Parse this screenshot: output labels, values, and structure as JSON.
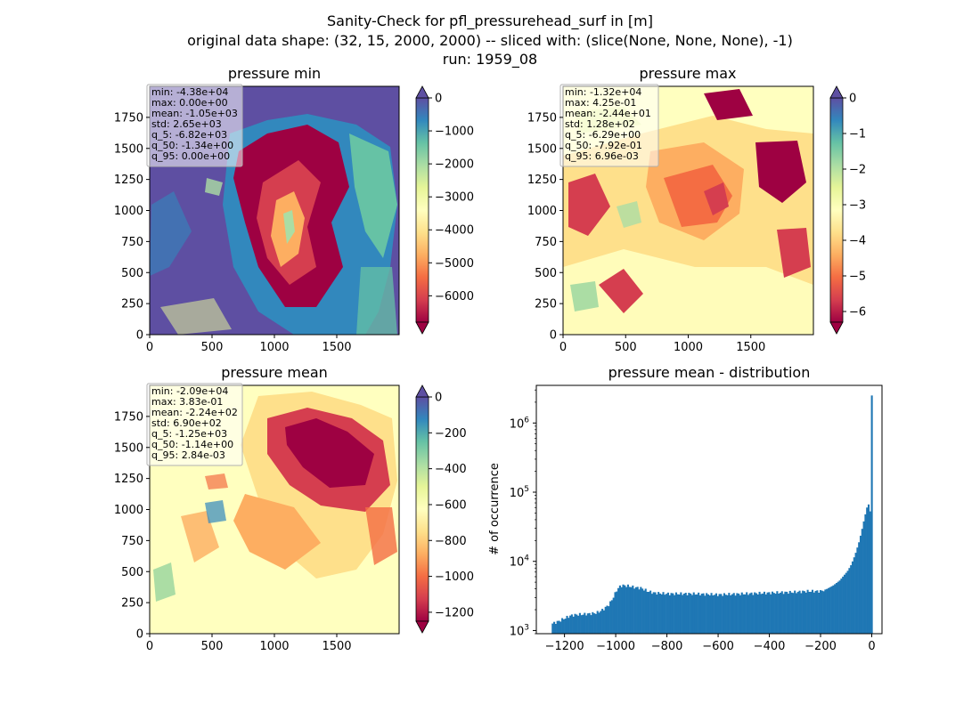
{
  "figure": {
    "title_lines": [
      "Sanity-Check for pfl_pressurehead_surf in [m]",
      "original data shape: (32, 15, 2000, 2000) -- sliced with: (slice(None, None, None), -1)",
      "run: 1959_08"
    ]
  },
  "chart_data": [
    {
      "type": "heatmap",
      "title": "pressure min",
      "xlabel": "",
      "ylabel": "",
      "xlim": [
        0,
        2000
      ],
      "ylim": [
        0,
        2000
      ],
      "xticks": [
        0,
        500,
        1000,
        1500
      ],
      "yticks": [
        0,
        250,
        500,
        750,
        1000,
        1250,
        1500,
        1750
      ],
      "colorbar": {
        "cmap": "Spectral",
        "range": [
          -6800,
          0
        ],
        "ticks": [
          0,
          -1000,
          -2000,
          -3000,
          -4000,
          -5000,
          -6000
        ],
        "extend": "both",
        "over_color": "#5e4fa2",
        "under_color": "#9e0142"
      },
      "stats": {
        "min": "-4.38e+04",
        "max": "0.00e+00",
        "mean": "-1.05e+03",
        "std": "2.65e+03",
        "q_5": "-6.82e+03",
        "q_50": "-1.34e+00",
        "q_95": "0.00e+00"
      }
    },
    {
      "type": "heatmap",
      "title": "pressure max",
      "xlabel": "",
      "ylabel": "",
      "xlim": [
        0,
        2000
      ],
      "ylim": [
        0,
        2000
      ],
      "xticks": [
        0,
        500,
        1000,
        1500
      ],
      "yticks": [
        0,
        250,
        500,
        750,
        1000,
        1250,
        1500,
        1750
      ],
      "colorbar": {
        "cmap": "Spectral",
        "range": [
          -6.3,
          0
        ],
        "ticks": [
          0,
          -1,
          -2,
          -3,
          -4,
          -5,
          -6
        ],
        "extend": "both",
        "over_color": "#5e4fa2",
        "under_color": "#9e0142"
      },
      "stats": {
        "min": "-1.32e+04",
        "max": "4.25e-01",
        "mean": "-2.44e+01",
        "std": "1.28e+02",
        "q_5": "-6.29e+00",
        "q_50": "-7.92e-01",
        "q_95": "6.96e-03"
      }
    },
    {
      "type": "heatmap",
      "title": "pressure mean",
      "xlabel": "",
      "ylabel": "",
      "xlim": [
        0,
        2000
      ],
      "ylim": [
        0,
        2000
      ],
      "xticks": [
        0,
        500,
        1000,
        1500
      ],
      "yticks": [
        0,
        250,
        500,
        750,
        1000,
        1250,
        1500,
        1750
      ],
      "colorbar": {
        "cmap": "Spectral",
        "range": [
          -1250,
          0
        ],
        "ticks": [
          0,
          -200,
          -400,
          -600,
          -800,
          -1000,
          -1200
        ],
        "extend": "both",
        "over_color": "#5e4fa2",
        "under_color": "#9e0142"
      },
      "stats": {
        "min": "-2.09e+04",
        "max": "3.83e-01",
        "mean": "-2.24e+02",
        "std": "6.90e+02",
        "q_5": "-1.25e+03",
        "q_50": "-1.14e+00",
        "q_95": "2.84e-03"
      }
    },
    {
      "type": "bar",
      "title": "pressure mean - distribution",
      "xlabel": "",
      "ylabel": "# of occurrence",
      "xlim": [
        -1310,
        40
      ],
      "ylim": [
        900,
        3500000
      ],
      "yscale": "log",
      "xticks": [
        -1200,
        -1000,
        -800,
        -600,
        -400,
        -200,
        0
      ],
      "color": "#1f77b4",
      "bin_range": [
        -1250,
        3
      ],
      "bins": 200,
      "profile": [
        [
          -1250,
          1250
        ],
        [
          -1225,
          1350
        ],
        [
          -1200,
          1500
        ],
        [
          -1175,
          1650
        ],
        [
          -1150,
          1700
        ],
        [
          -1125,
          1720
        ],
        [
          -1100,
          1750
        ],
        [
          -1075,
          1800
        ],
        [
          -1050,
          2000
        ],
        [
          -1025,
          2400
        ],
        [
          -1010,
          3000
        ],
        [
          -995,
          3900
        ],
        [
          -985,
          4300
        ],
        [
          -975,
          4500
        ],
        [
          -950,
          4400
        ],
        [
          -925,
          4200
        ],
        [
          -900,
          4100
        ],
        [
          -875,
          3700
        ],
        [
          -850,
          3500
        ],
        [
          -800,
          3400
        ],
        [
          -700,
          3400
        ],
        [
          -600,
          3300
        ],
        [
          -500,
          3400
        ],
        [
          -400,
          3500
        ],
        [
          -300,
          3600
        ],
        [
          -250,
          3700
        ],
        [
          -200,
          3700
        ],
        [
          -175,
          4000
        ],
        [
          -150,
          4500
        ],
        [
          -125,
          5300
        ],
        [
          -110,
          6200
        ],
        [
          -95,
          7200
        ],
        [
          -80,
          9000
        ],
        [
          -65,
          12500
        ],
        [
          -50,
          19000
        ],
        [
          -40,
          27000
        ],
        [
          -30,
          40000
        ],
        [
          -20,
          58000
        ],
        [
          -14,
          70000
        ],
        [
          -10,
          60000
        ],
        [
          -6,
          52000
        ],
        [
          -3,
          47000
        ],
        [
          -1,
          50000
        ],
        [
          0,
          2500000
        ]
      ]
    }
  ]
}
